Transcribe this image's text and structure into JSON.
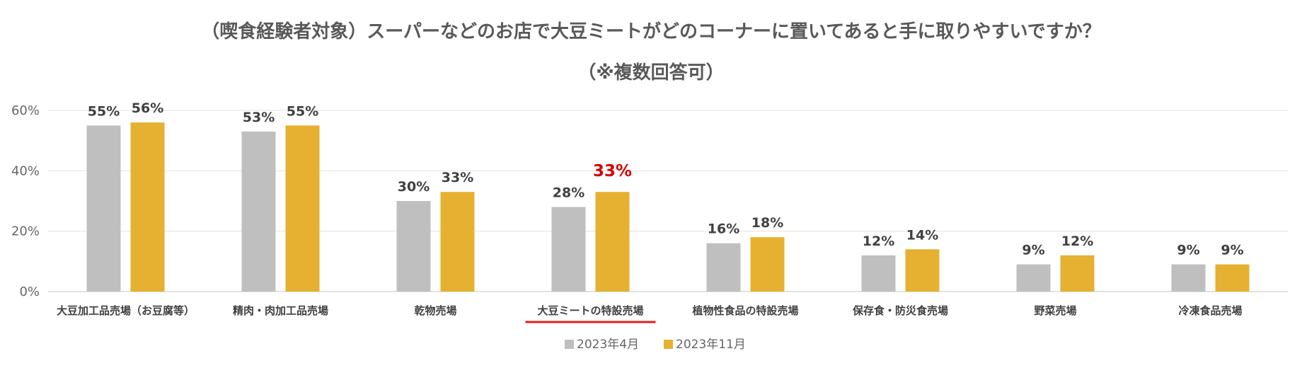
{
  "chart_data": {
    "type": "bar",
    "title": "（喫食経験者対象）スーパーなどのお店で大豆ミートがどのコーナーに置いてあると手に取りやすいですか？",
    "subtitle": "（※複数回答可）",
    "categories": [
      "大豆加工品売場（お豆腐等）",
      "精肉・肉加工品売場",
      "乾物売場",
      "大豆ミートの特設売場",
      "植物性食品の特設売場",
      "保存食・防災食売場",
      "野菜売場",
      "冷凍食品売場"
    ],
    "series": [
      {
        "name": "2023年4月",
        "color": "#bfbfbf",
        "values": [
          55,
          53,
          30,
          28,
          16,
          12,
          9,
          9
        ],
        "labels": [
          "55%",
          "53%",
          "30%",
          "28%",
          "16%",
          "12%",
          "9%",
          "9%"
        ]
      },
      {
        "name": "2023年11月",
        "color": "#e6b030",
        "values": [
          56,
          55,
          33,
          33,
          18,
          14,
          12,
          9
        ],
        "labels": [
          "56%",
          "55%",
          "33%",
          "33%",
          "18%",
          "14%",
          "12%",
          "9%"
        ]
      }
    ],
    "ylim": [
      0,
      60
    ],
    "yticks": [
      "0%",
      "20%",
      "40%",
      "60%"
    ],
    "ytick_values": [
      0,
      20,
      40,
      60
    ],
    "grid": true,
    "legend_position": "bottom",
    "highlight_category_index": 3,
    "highlight_color": "#d40000",
    "underline_color": "#e02020"
  }
}
